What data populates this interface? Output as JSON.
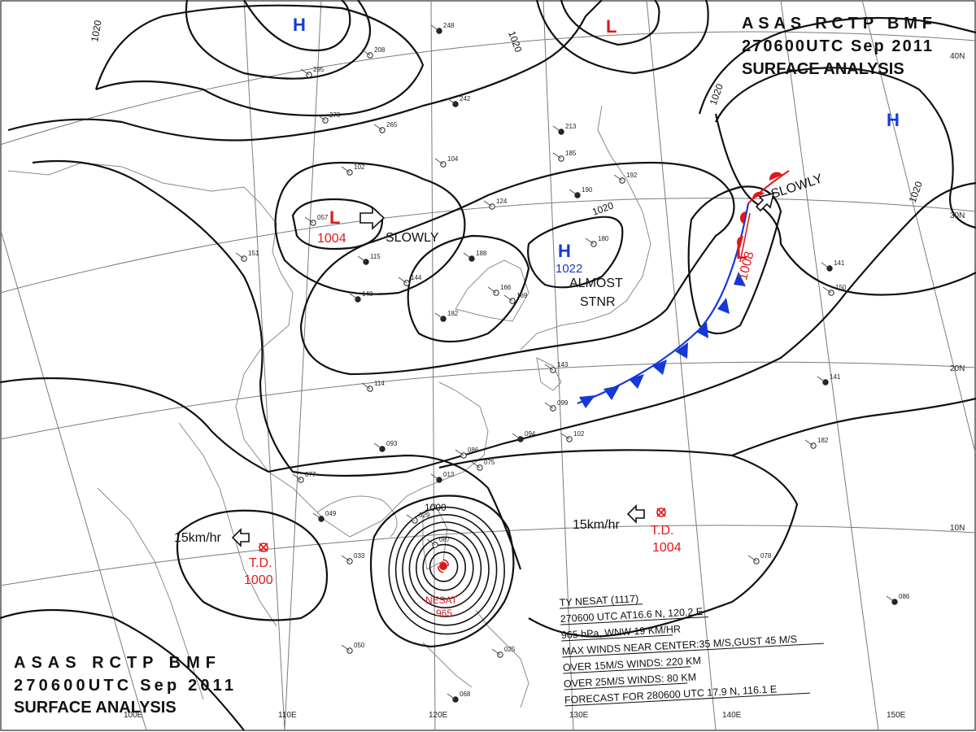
{
  "header_top": {
    "line1": "ASAS RCTP BMF",
    "line2": "270600UTC Sep 2011",
    "line3": "SURFACE ANALYSIS"
  },
  "header_bottom": {
    "line1": "ASAS RCTP BMF",
    "line2": "270600UTC Sep 2011",
    "line3": "SURFACE ANALYSIS"
  },
  "systems": {
    "high_north": "H",
    "low_north": "L",
    "high_east": "H",
    "low_china": "L",
    "low_china_pressure": "1004",
    "low_china_motion": "SLOWLY",
    "high_center": "H",
    "high_center_pressure": "1022",
    "high_center_motion_1": "ALMOST",
    "high_center_motion_2": "STNR",
    "low_east": "L",
    "low_east_pressure": "1008",
    "low_east_motion": "SLOWLY",
    "td_west": "T.D.",
    "td_west_pressure": "1000",
    "td_west_motion": "15km/hr",
    "td_east": "T.D.",
    "td_east_pressure": "1004",
    "td_east_motion": "15km/hr",
    "typhoon_name": "NESAT",
    "typhoon_pressure": "965"
  },
  "isobar_labels": [
    "1020",
    "1020",
    "1020",
    "1020",
    "1020",
    "1000"
  ],
  "lat_labels": [
    "40N",
    "30N",
    "20N",
    "10N"
  ],
  "lon_labels": [
    "100E",
    "110E",
    "120E",
    "130E",
    "140E",
    "150E"
  ],
  "typhoon_info": [
    "TY NESAT (1117)",
    "270600 UTC AT16.6 N, 120.2 E",
    "965 hPa, WNW 19 KM/HR",
    "MAX WINDS NEAR CENTER:35 M/S,GUST 45 M/S",
    "OVER 15M/S WINDS: 220 KM",
    "OVER 25M/S WINDS: 80 KM",
    "FORECAST FOR 280600 UTC 17.9 N, 116.1 E"
  ],
  "station_numbers": [
    "248",
    "208",
    "295",
    "242",
    "273",
    "265",
    "213",
    "185",
    "192",
    "190",
    "057",
    "102",
    "115",
    "104",
    "124",
    "188",
    "166",
    "180",
    "148",
    "144",
    "169",
    "182",
    "114",
    "099",
    "093",
    "086",
    "075",
    "094",
    "102",
    "143",
    "141",
    "150",
    "077",
    "049",
    "033",
    "029",
    "013",
    "087",
    "050",
    "068",
    "025",
    "078",
    "086",
    "182",
    "151",
    "141"
  ],
  "colors": {
    "isobar": "#111111",
    "grid": "#7a7a7a",
    "coast": "#8a8a8a",
    "high": "#1538d8",
    "low": "#e01818",
    "cold_front": "#1538d8",
    "warm_front": "#e01818"
  },
  "icons": [
    "high-pressure-icon",
    "low-pressure-icon",
    "typhoon-symbol-icon",
    "tropical-depression-icon",
    "motion-arrow-icon",
    "cold-front-icon",
    "warm-front-icon",
    "station-plot-icon"
  ]
}
